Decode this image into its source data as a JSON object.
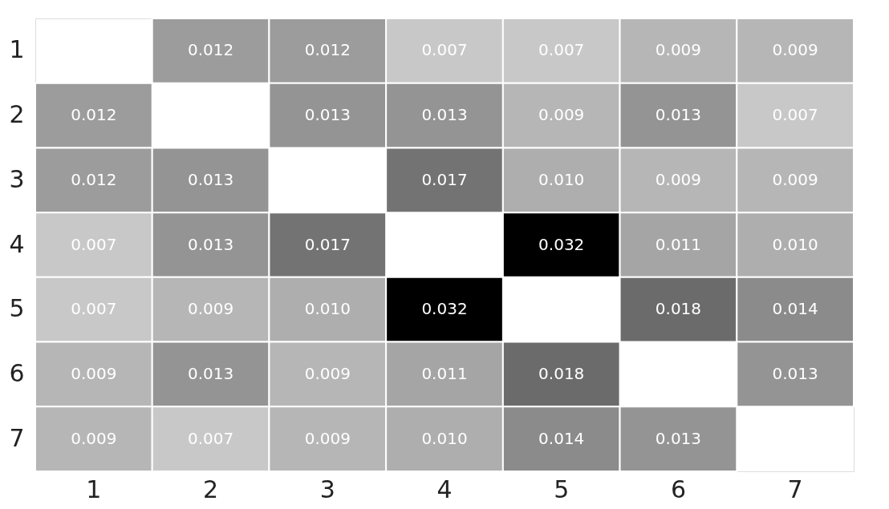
{
  "chart_data": {
    "type": "heatmap",
    "categories": [
      "1",
      "2",
      "3",
      "4",
      "5",
      "6",
      "7"
    ],
    "y_categories": [
      "1",
      "2",
      "3",
      "4",
      "5",
      "6",
      "7"
    ],
    "cells": [
      [
        null,
        0.012,
        0.012,
        0.007,
        0.007,
        0.009,
        0.009
      ],
      [
        0.012,
        null,
        0.013,
        0.013,
        0.009,
        0.013,
        0.007
      ],
      [
        0.012,
        0.013,
        null,
        0.017,
        0.01,
        0.009,
        0.009
      ],
      [
        0.007,
        0.013,
        0.017,
        null,
        0.032,
        0.011,
        0.01
      ],
      [
        0.007,
        0.009,
        0.01,
        0.032,
        null,
        0.018,
        0.014
      ],
      [
        0.009,
        0.013,
        0.009,
        0.011,
        0.018,
        null,
        0.013
      ],
      [
        0.009,
        0.007,
        0.009,
        0.01,
        0.014,
        0.013,
        null
      ]
    ],
    "cell_labels": [
      [
        null,
        "0.012",
        "0.012",
        "0.007",
        "0.007",
        "0.009",
        "0.009"
      ],
      [
        "0.012",
        null,
        "0.013",
        "0.013",
        "0.009",
        "0.013",
        "0.007"
      ],
      [
        "0.012",
        "0.013",
        null,
        "0.017",
        "0.010",
        "0.009",
        "0.009"
      ],
      [
        "0.007",
        "0.013",
        "0.017",
        null,
        "0.032",
        "0.011",
        "0.010"
      ],
      [
        "0.007",
        "0.009",
        "0.010",
        "0.032",
        null,
        "0.018",
        "0.014"
      ],
      [
        "0.009",
        "0.013",
        "0.009",
        "0.011",
        "0.018",
        null,
        "0.013"
      ],
      [
        "0.009",
        "0.007",
        "0.009",
        "0.010",
        "0.014",
        "0.013",
        null
      ]
    ],
    "data_labels": true
  }
}
